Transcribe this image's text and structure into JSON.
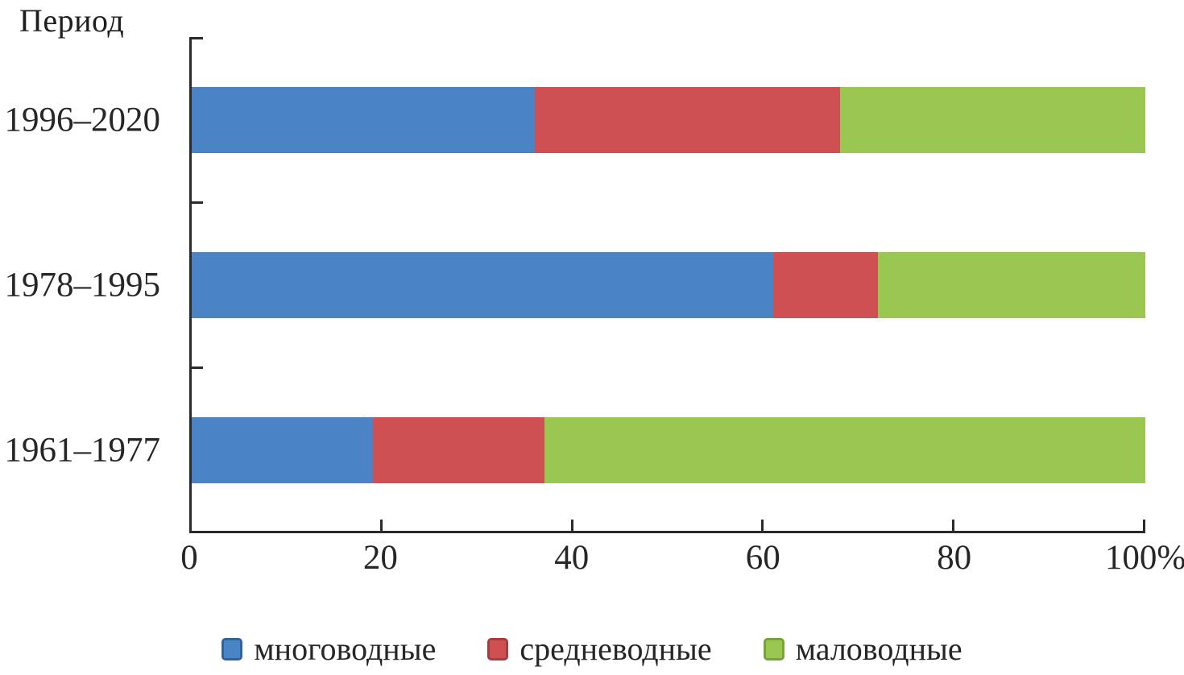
{
  "page": {
    "background": "#ffffff"
  },
  "chart_data": {
    "type": "bar",
    "variant": "horizontal-stacked-100",
    "title": "Период",
    "ylabel": "Период",
    "xlabel": "",
    "categories": [
      "1996–2020",
      "1978–1995",
      "1961–1977"
    ],
    "series": [
      {
        "name": "многоводные",
        "color": "#4a84c4",
        "edge": "#2f63a0",
        "values": [
          36,
          61,
          19
        ]
      },
      {
        "name": "средневодные",
        "color": "#cf5052",
        "edge": "#a83b3d",
        "values": [
          32,
          11,
          18
        ]
      },
      {
        "name": "маловодные",
        "color": "#9ac751",
        "edge": "#78a338",
        "values": [
          32,
          28,
          63
        ]
      }
    ],
    "xlim": [
      0,
      100
    ],
    "x_ticks": [
      0,
      20,
      40,
      60,
      80,
      100
    ],
    "x_tick_labels": [
      "0",
      "20",
      "40",
      "60",
      "80",
      "100%"
    ],
    "y_boundary_ticks": [
      0,
      1,
      2
    ],
    "grid": false,
    "legend_position": "bottom",
    "axis_color": "#2b2b2b"
  }
}
